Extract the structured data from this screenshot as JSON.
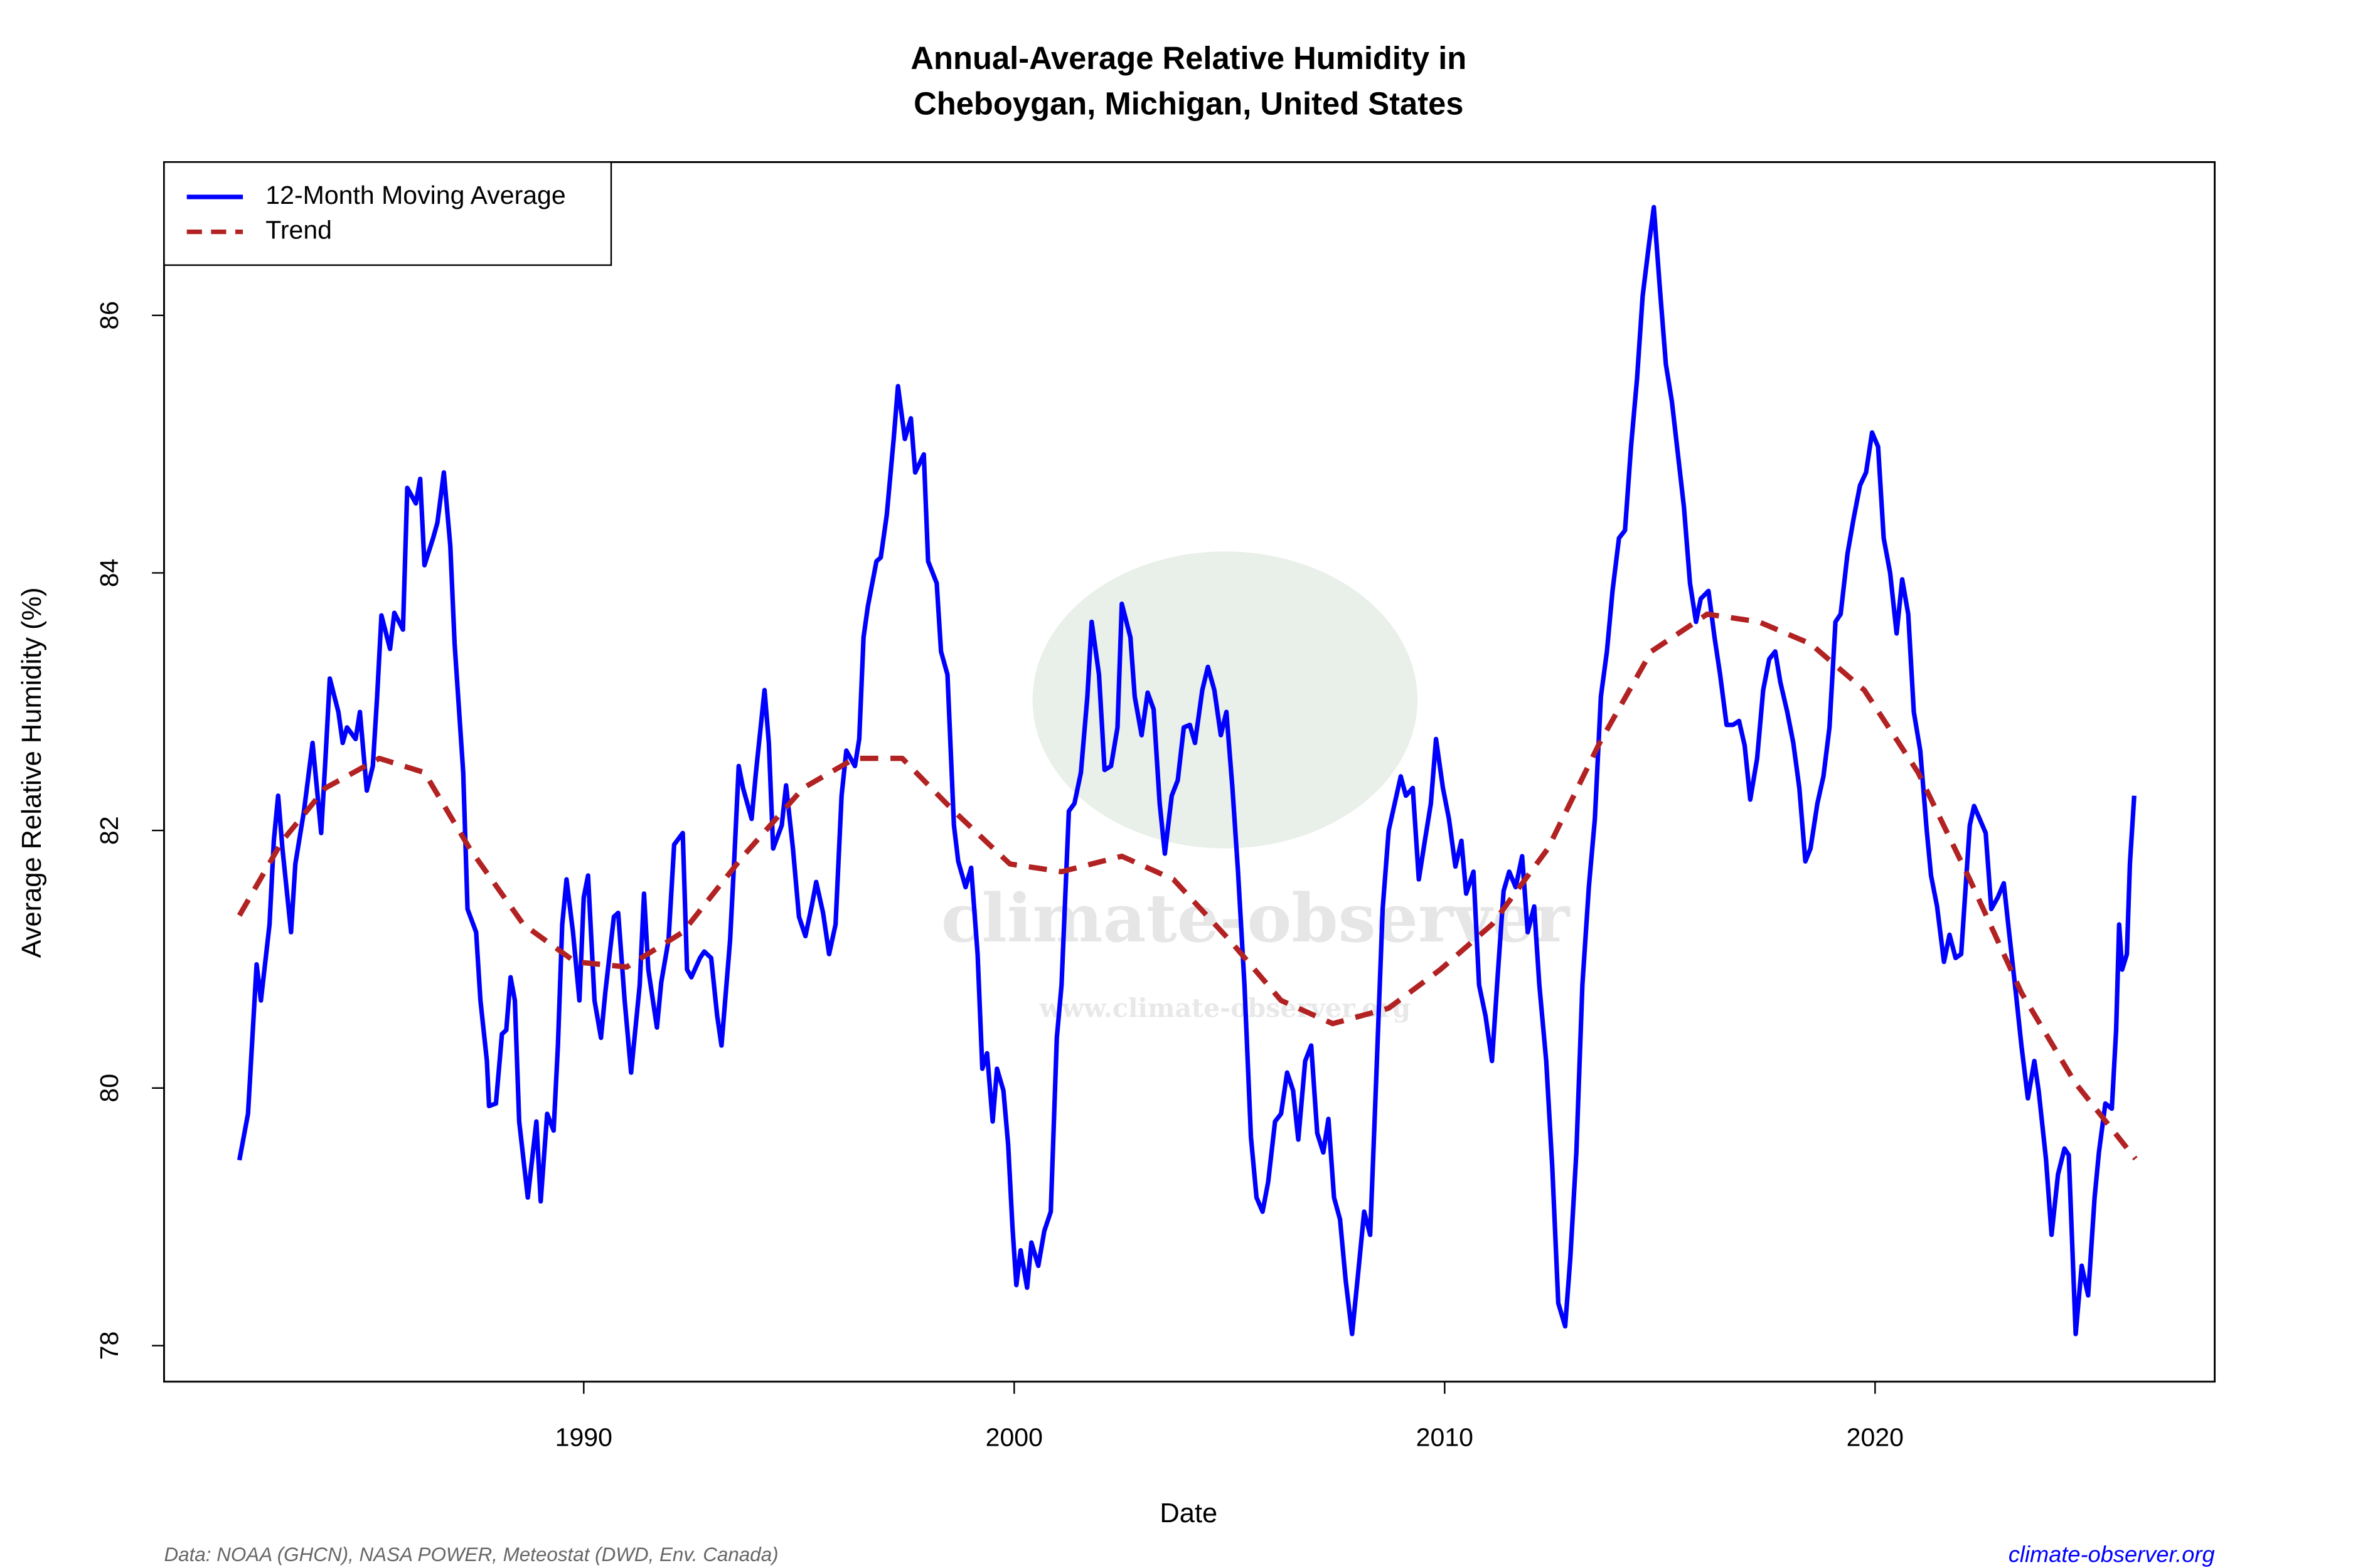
{
  "chart_data": {
    "type": "line",
    "title": [
      "Annual-Average Relative Humidity in",
      "Cheboygan, Michigan, United States"
    ],
    "x_label": "Date",
    "y_label": "Average Relative Humidity (%)",
    "source": "Data: NOAA (GHCN), NASA POWER, Meteostat (DWD, Env. Canada)",
    "site": "climate-observer.org",
    "watermark": [
      "climate-observer",
      "www.climate-observer.org"
    ],
    "xlim": [
      1980.25,
      2027.89
    ],
    "xticks": [
      1990,
      2000,
      2010,
      2020
    ],
    "ylim": [
      77.72,
      87.19
    ],
    "yticks": [
      78,
      80,
      82,
      84,
      86
    ],
    "legend": "upper left",
    "series": [
      {
        "name": "12-Month Moving Average",
        "color": "#0000ff",
        "linestyle": "solid",
        "x": [
          1982.0,
          1982.2,
          1982.3,
          1982.4,
          1982.5,
          1982.7,
          1982.8,
          1982.9,
          1983.0,
          1983.2,
          1983.3,
          1983.5,
          1983.7,
          1983.9,
          1984.0,
          1984.1,
          1984.3,
          1984.4,
          1984.5,
          1984.7,
          1984.8,
          1984.96,
          1985.1,
          1985.2,
          1985.3,
          1985.5,
          1985.6,
          1985.8,
          1985.9,
          1986.1,
          1986.2,
          1986.3,
          1986.5,
          1986.6,
          1986.75,
          1986.9,
          1987.0,
          1987.2,
          1987.3,
          1987.5,
          1987.6,
          1987.75,
          1987.8,
          1987.96,
          1988.1,
          1988.2,
          1988.3,
          1988.4,
          1988.5,
          1988.7,
          1988.9,
          1989.0,
          1989.15,
          1989.3,
          1989.4,
          1989.5,
          1989.6,
          1989.75,
          1989.9,
          1990.0,
          1990.1,
          1990.25,
          1990.4,
          1990.5,
          1990.7,
          1990.8,
          1990.95,
          1991.1,
          1991.3,
          1991.4,
          1991.5,
          1991.7,
          1991.8,
          1991.97,
          1992.1,
          1992.3,
          1992.4,
          1992.5,
          1992.7,
          1992.8,
          1992.96,
          1993.1,
          1993.2,
          1993.4,
          1993.5,
          1993.6,
          1993.7,
          1993.9,
          1994.0,
          1994.2,
          1994.3,
          1994.4,
          1994.6,
          1994.7,
          1994.86,
          1995.0,
          1995.15,
          1995.3,
          1995.4,
          1995.56,
          1995.7,
          1995.85,
          1995.99,
          1996.1,
          1996.3,
          1996.4,
          1996.5,
          1996.6,
          1996.8,
          1996.9,
          1997.04,
          1997.2,
          1997.3,
          1997.46,
          1997.6,
          1997.7,
          1997.9,
          1998.0,
          1998.2,
          1998.3,
          1998.45,
          1998.6,
          1998.7,
          1998.87,
          1999.0,
          1999.15,
          1999.26,
          1999.37,
          1999.5,
          1999.6,
          1999.75,
          1999.86,
          1999.96,
          2000.05,
          2000.15,
          2000.3,
          2000.4,
          2000.56,
          2000.7,
          2000.85,
          2000.99,
          2001.1,
          2001.27,
          2001.4,
          2001.55,
          2001.7,
          2001.8,
          2001.97,
          2002.1,
          2002.25,
          2002.4,
          2002.5,
          2002.7,
          2002.8,
          2002.96,
          2003.1,
          2003.24,
          2003.38,
          2003.5,
          2003.66,
          2003.8,
          2003.94,
          2004.08,
          2004.2,
          2004.37,
          2004.5,
          2004.65,
          2004.8,
          2004.93,
          2005.07,
          2005.2,
          2005.35,
          2005.5,
          2005.63,
          2005.77,
          2005.9,
          2006.06,
          2006.2,
          2006.34,
          2006.48,
          2006.6,
          2006.76,
          2006.9,
          2007.04,
          2007.18,
          2007.3,
          2007.43,
          2007.57,
          2007.7,
          2007.85,
          2007.99,
          2008.13,
          2008.27,
          2008.4,
          2008.56,
          2008.7,
          2008.84,
          2008.98,
          2009.1,
          2009.26,
          2009.4,
          2009.54,
          2009.68,
          2009.8,
          2009.96,
          2010.1,
          2010.25,
          2010.39,
          2010.5,
          2010.67,
          2010.8,
          2010.95,
          2011.1,
          2011.23,
          2011.37,
          2011.5,
          2011.65,
          2011.8,
          2011.93,
          2012.08,
          2012.2,
          2012.36,
          2012.5,
          2012.64,
          2012.8,
          2012.92,
          2013.06,
          2013.2,
          2013.35,
          2013.49,
          2013.63,
          2013.77,
          2013.9,
          2014.05,
          2014.19,
          2014.33,
          2014.47,
          2014.6,
          2014.75,
          2014.86,
          2015.0,
          2015.14,
          2015.28,
          2015.42,
          2015.56,
          2015.7,
          2015.84,
          2015.95,
          2016.13,
          2016.27,
          2016.4,
          2016.55,
          2016.7,
          2016.84,
          2016.97,
          2017.1,
          2017.26,
          2017.4,
          2017.54,
          2017.68,
          2017.8,
          2017.96,
          2018.1,
          2018.24,
          2018.38,
          2018.5,
          2018.66,
          2018.8,
          2018.94,
          2019.08,
          2019.2,
          2019.36,
          2019.5,
          2019.65,
          2019.79,
          2019.93,
          2020.07,
          2020.2,
          2020.35,
          2020.5,
          2020.63,
          2020.77,
          2020.9,
          2021.05,
          2021.2,
          2021.3,
          2021.44,
          2021.6,
          2021.73,
          2021.87,
          2022.0,
          2022.2,
          2022.3,
          2022.43,
          2022.57,
          2022.7,
          2022.85,
          2022.99,
          2023.1,
          2023.27,
          2023.4,
          2023.55,
          2023.7,
          2023.8,
          2023.97,
          2024.1,
          2024.25,
          2024.4,
          2024.5,
          2024.66,
          2024.8,
          2024.95,
          2025.1,
          2025.2,
          2025.35,
          2025.5,
          2025.6,
          2025.67,
          2025.74,
          2025.85,
          2025.92,
          2026.02
        ],
        "values": [
          79.44,
          79.8,
          80.38,
          80.96,
          80.68,
          81.27,
          81.92,
          82.27,
          81.86,
          81.21,
          81.74,
          82.15,
          82.68,
          81.98,
          82.56,
          83.18,
          82.92,
          82.68,
          82.8,
          82.71,
          82.92,
          82.31,
          82.5,
          83.04,
          83.67,
          83.41,
          83.69,
          83.56,
          84.66,
          84.54,
          84.73,
          84.06,
          84.27,
          84.39,
          84.78,
          84.21,
          83.45,
          82.45,
          81.39,
          81.21,
          80.68,
          80.21,
          79.86,
          79.88,
          80.42,
          80.45,
          80.86,
          80.68,
          79.74,
          79.15,
          79.74,
          79.12,
          79.8,
          79.67,
          80.33,
          81.27,
          81.62,
          81.21,
          80.68,
          81.48,
          81.65,
          80.68,
          80.39,
          80.74,
          81.33,
          81.36,
          80.68,
          80.12,
          80.8,
          81.51,
          80.92,
          80.47,
          80.82,
          81.15,
          81.89,
          81.98,
          80.92,
          80.86,
          81.01,
          81.06,
          81.01,
          80.56,
          80.33,
          81.15,
          81.8,
          82.5,
          82.33,
          82.09,
          82.45,
          83.09,
          82.68,
          81.86,
          82.04,
          82.35,
          81.86,
          81.33,
          81.18,
          81.42,
          81.6,
          81.36,
          81.04,
          81.27,
          82.27,
          82.62,
          82.5,
          82.71,
          83.5,
          83.74,
          84.09,
          84.12,
          84.45,
          85.04,
          85.45,
          85.04,
          85.2,
          84.78,
          84.92,
          84.09,
          83.92,
          83.39,
          83.21,
          82.04,
          81.76,
          81.56,
          81.71,
          81.04,
          80.15,
          80.27,
          79.74,
          80.15,
          79.98,
          79.56,
          78.92,
          78.47,
          78.74,
          78.45,
          78.8,
          78.62,
          78.89,
          79.04,
          80.39,
          80.8,
          82.15,
          82.21,
          82.45,
          83.04,
          83.62,
          83.21,
          82.47,
          82.5,
          82.8,
          83.76,
          83.5,
          83.04,
          82.74,
          83.07,
          82.94,
          82.21,
          81.82,
          82.27,
          82.39,
          82.8,
          82.82,
          82.68,
          83.09,
          83.27,
          83.09,
          82.74,
          82.92,
          82.33,
          81.68,
          80.8,
          79.62,
          79.15,
          79.04,
          79.27,
          79.74,
          79.8,
          80.12,
          79.98,
          79.6,
          80.21,
          80.33,
          79.65,
          79.5,
          79.76,
          79.15,
          78.98,
          78.51,
          78.09,
          78.56,
          79.04,
          78.86,
          79.98,
          81.39,
          82.0,
          82.21,
          82.42,
          82.27,
          82.33,
          81.62,
          81.92,
          82.21,
          82.71,
          82.33,
          82.09,
          81.72,
          81.92,
          81.51,
          81.68,
          80.8,
          80.56,
          80.21,
          80.86,
          81.53,
          81.68,
          81.56,
          81.8,
          81.21,
          81.41,
          80.8,
          80.21,
          79.39,
          78.33,
          78.15,
          78.68,
          79.5,
          80.8,
          81.56,
          82.09,
          83.04,
          83.39,
          83.86,
          84.27,
          84.33,
          84.98,
          85.51,
          86.15,
          86.56,
          86.84,
          86.21,
          85.62,
          85.33,
          84.92,
          84.51,
          83.92,
          83.62,
          83.8,
          83.86,
          83.5,
          83.21,
          82.82,
          82.82,
          82.85,
          82.66,
          82.24,
          82.56,
          83.09,
          83.33,
          83.39,
          83.15,
          82.92,
          82.68,
          82.33,
          81.76,
          81.86,
          82.21,
          82.42,
          82.8,
          83.62,
          83.68,
          84.15,
          84.42,
          84.68,
          84.78,
          85.09,
          84.98,
          84.27,
          84.0,
          83.53,
          83.95,
          83.68,
          82.92,
          82.62,
          82.0,
          81.65,
          81.41,
          80.98,
          81.19,
          81.01,
          81.04,
          82.04,
          82.19,
          82.09,
          81.98,
          81.39,
          81.48,
          81.59,
          81.25,
          80.74,
          80.33,
          79.92,
          80.21,
          79.98,
          79.45,
          78.86,
          79.33,
          79.53,
          79.48,
          78.09,
          78.62,
          78.39,
          79.15,
          79.5,
          79.88,
          79.84,
          80.45,
          81.27,
          80.92,
          81.04,
          81.74,
          82.27
        ]
      },
      {
        "name": "Trend",
        "color": "#b22222",
        "linestyle": "dashed",
        "x": [
          1982.0,
          1983.0,
          1984.0,
          1985.25,
          1986.3,
          1987.35,
          1988.6,
          1989.8,
          1991.0,
          1992.3,
          1993.7,
          1995.1,
          1996.3,
          1997.4,
          1998.6,
          1999.9,
          2001.1,
          2002.5,
          2003.7,
          2005.0,
          2006.2,
          2007.4,
          2008.7,
          2009.9,
          2011.1,
          2012.4,
          2013.6,
          2014.8,
          2016.1,
          2017.3,
          2018.5,
          2019.75,
          2021.0,
          2022.2,
          2023.4,
          2024.65,
          2026.05
        ],
        "values": [
          81.34,
          81.92,
          82.33,
          82.56,
          82.45,
          81.86,
          81.27,
          80.98,
          80.94,
          81.21,
          81.8,
          82.33,
          82.56,
          82.56,
          82.15,
          81.74,
          81.68,
          81.8,
          81.62,
          81.15,
          80.68,
          80.5,
          80.62,
          80.92,
          81.27,
          81.86,
          82.68,
          83.39,
          83.68,
          83.62,
          83.45,
          83.09,
          82.45,
          81.62,
          80.74,
          80.04,
          79.45
        ]
      }
    ]
  }
}
